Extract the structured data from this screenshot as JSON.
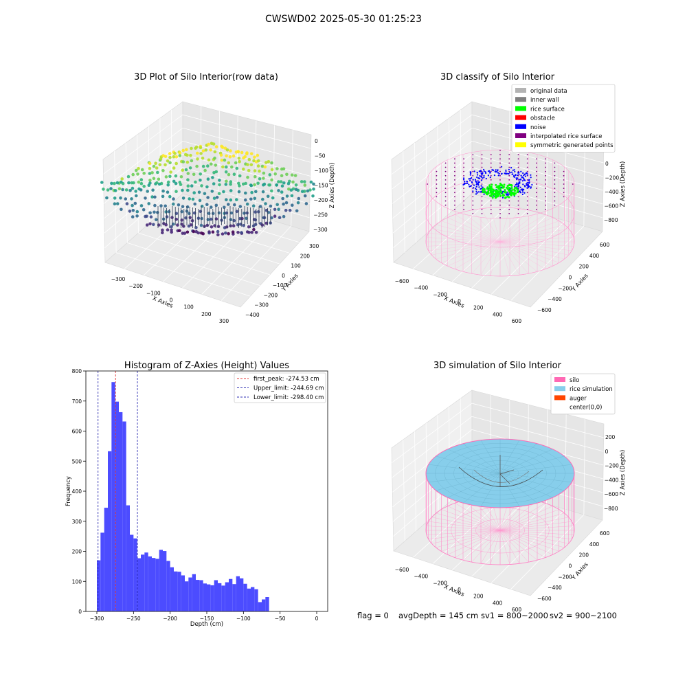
{
  "suptitle": "CWSWD02 2025-05-30 01:25:23",
  "footer": {
    "flag": "flag = 0",
    "avg": "avgDepth = 145 cm",
    "sv1": "sv1 = 800~2000",
    "sv2": "sv2 = 900~2100"
  },
  "chart_data": [
    {
      "type": "scatter",
      "title": "3D Plot of Silo Interior(row data)",
      "xlabel": "X Axies",
      "ylabel": "Y Axies",
      "zlabel": "Z Axies (Depth)",
      "xticks": [
        "−300",
        "−200",
        "−100",
        "0",
        "100",
        "200",
        "300"
      ],
      "yticks": [
        "300",
        "200",
        "100",
        "0",
        "−100",
        "−200",
        "−300",
        "−400"
      ],
      "zticks": [
        "0",
        "−50",
        "−100",
        "−150",
        "−200",
        "−250",
        "−300"
      ],
      "colormap": "viridis"
    },
    {
      "type": "scatter",
      "title": "3D classify of Silo Interior",
      "xlabel": "X Axies",
      "ylabel": "Y Axies",
      "zlabel": "Z Axies (Depth)",
      "xticks": [
        "−600",
        "−400",
        "−200",
        "0",
        "200",
        "400",
        "600"
      ],
      "yticks": [
        "600",
        "400",
        "200",
        "0",
        "−200",
        "−400",
        "−600"
      ],
      "zticks": [
        "0",
        "−200",
        "−400",
        "−600",
        "−800"
      ],
      "legend": [
        {
          "label": "original data",
          "color": "#b3b3b3"
        },
        {
          "label": "inner wall",
          "color": "#808080"
        },
        {
          "label": "rice surface",
          "color": "#00ff00"
        },
        {
          "label": "obstacle",
          "color": "#ff0000"
        },
        {
          "label": "noise",
          "color": "#0000ff"
        },
        {
          "label": "interpolated rice surface",
          "color": "#800080"
        },
        {
          "label": "symmetric generated points",
          "color": "#ffff00"
        }
      ],
      "legend_position": "top-right"
    },
    {
      "type": "bar",
      "title": "Histogram of Z-Axies (Height) Values",
      "xlabel": "Depth (cm)",
      "ylabel": "Frequency",
      "xlim": [
        -315,
        15
      ],
      "ylim": [
        0,
        800
      ],
      "xticks": [
        -300,
        -250,
        -200,
        -150,
        -100,
        -50,
        0
      ],
      "xtick_labels": [
        "−300",
        "−250",
        "−200",
        "−150",
        "−100",
        "−50",
        "0"
      ],
      "yticks": [
        0,
        100,
        200,
        300,
        400,
        500,
        600,
        700,
        800
      ],
      "bin_start": -300,
      "bin_width": 5.0,
      "values": [
        170,
        262,
        345,
        533,
        763,
        698,
        663,
        632,
        353,
        255,
        243,
        177,
        189,
        196,
        183,
        178,
        175,
        205,
        201,
        168,
        147,
        133,
        132,
        120,
        100,
        113,
        124,
        105,
        104,
        93,
        90,
        87,
        104,
        94,
        86,
        97,
        108,
        91,
        117,
        110,
        92,
        76,
        81,
        74,
        31,
        40,
        48
      ],
      "bar_color": "#4c4cff",
      "lines": [
        {
          "label": "first_peak: -274.53 cm",
          "x": -274.53,
          "color": "#e03030"
        },
        {
          "label": "Upper_limit: -244.69 cm",
          "x": -244.69,
          "color": "#2a2ab0"
        },
        {
          "label": "Lower_limit: -298.40 cm",
          "x": -298.4,
          "color": "#2a2ab0"
        }
      ],
      "legend_position": "top-right"
    },
    {
      "type": "scatter",
      "title": "3D simulation of Silo Interior",
      "xlabel": "X Axies",
      "ylabel": "Y Axies",
      "zlabel": "Z Axies (Depth)",
      "xticks": [
        "−600",
        "−400",
        "−200",
        "0",
        "200",
        "400",
        "600"
      ],
      "yticks": [
        "600",
        "400",
        "200",
        "0",
        "−200",
        "−400",
        "−600"
      ],
      "zticks": [
        "200",
        "0",
        "−200",
        "−400",
        "−600",
        "−800"
      ],
      "legend": [
        {
          "label": "silo",
          "color": "#ff69b4"
        },
        {
          "label": "rice simulation",
          "color": "#87ceeb"
        },
        {
          "label": "auger",
          "color": "#ff4500"
        },
        {
          "label": "center(0,0)",
          "color": ""
        }
      ],
      "legend_position": "top-right"
    }
  ]
}
